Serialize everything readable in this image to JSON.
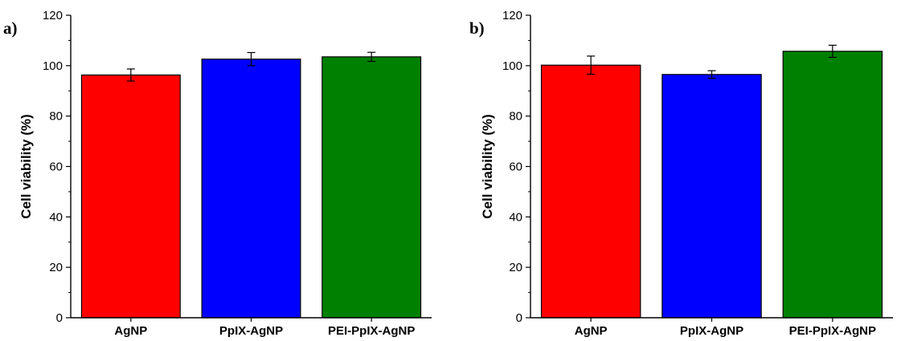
{
  "chart_data": [
    {
      "type": "bar",
      "panel_label": "a)",
      "categories": [
        "AgNP",
        "PpIX-AgNP",
        "PEI-PpIX-AgNP"
      ],
      "values": [
        96.3,
        102.6,
        103.5
      ],
      "errors": [
        2.4,
        2.6,
        1.8
      ],
      "colors": [
        "#ff0000",
        "#0000ff",
        "#008000"
      ],
      "title": "",
      "xlabel": "",
      "ylabel": "Cell viability (%)",
      "ylim": [
        0,
        120
      ],
      "yticks": [
        0,
        20,
        40,
        60,
        80,
        100,
        120
      ],
      "grid": false
    },
    {
      "type": "bar",
      "panel_label": "b)",
      "categories": [
        "AgNP",
        "PpIX-AgNP",
        "PEI-PpIX-AgNP"
      ],
      "values": [
        100.2,
        96.5,
        105.7
      ],
      "errors": [
        3.6,
        1.5,
        2.4
      ],
      "colors": [
        "#ff0000",
        "#0000ff",
        "#008000"
      ],
      "title": "",
      "xlabel": "",
      "ylabel": "Cell viability (%)",
      "ylim": [
        0,
        120
      ],
      "yticks": [
        0,
        20,
        40,
        60,
        80,
        100,
        120
      ],
      "grid": false
    }
  ]
}
